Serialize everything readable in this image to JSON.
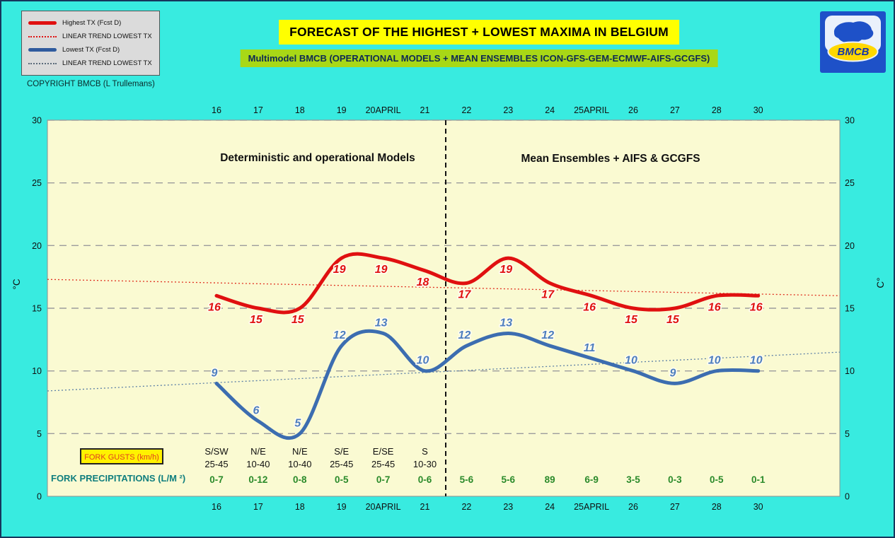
{
  "page": {
    "title": "FORECAST OF THE HIGHEST + LOWEST MAXIMA IN BELGIUM",
    "subtitle": "Multimodel BMCB (OPERATIONAL MODELS + MEAN ENSEMBLES  ICON-GFS-GEM-ECMWF-AIFS-GCGFS)",
    "copyright": "COPYRIGHT BMCB (L Trullemans)",
    "logo_text": "BMCB"
  },
  "legend": {
    "items": [
      {
        "label": "Highest TX (Fcst D)",
        "swatch": "red-solid-thick"
      },
      {
        "label": "LINEAR TREND LOWEST  TX",
        "swatch": "red-dotted"
      },
      {
        "label": "Lowest TX (Fcst D)",
        "swatch": "blue-solid-thick"
      },
      {
        "label": "LINEAR TREND LOWEST TX",
        "swatch": "gray-dotted"
      }
    ]
  },
  "chart_data": {
    "type": "line",
    "categories": [
      "16",
      "17",
      "18",
      "19",
      "20APRIL",
      "21",
      "22",
      "23",
      "24",
      "25APRIL",
      "26",
      "27",
      "28",
      "30"
    ],
    "y_axis": {
      "min": 0,
      "max": 30,
      "tick_step": 5,
      "unit_left": "°C",
      "unit_right": "C°"
    },
    "grid": true,
    "legend_position": "top-left",
    "sections": [
      {
        "label": "Deterministic and operational Models"
      },
      {
        "label": "Mean Ensembles + AIFS & GCGFS"
      }
    ],
    "separator_after_category": "21",
    "series": [
      {
        "name": "Highest TX (Fcst D)",
        "color": "#E01010",
        "label_color": "#E01010",
        "values": [
          16,
          15,
          15,
          19,
          19,
          18,
          17,
          19,
          17,
          16,
          15,
          15,
          16,
          16
        ]
      },
      {
        "name": "Lowest TX (Fcst D)",
        "color": "#3C6DB0",
        "label_color": "#4D7EBF",
        "values": [
          9,
          6,
          5,
          12,
          13,
          10,
          12,
          13,
          12,
          11,
          10,
          9,
          10,
          10
        ]
      }
    ],
    "trend_lines": [
      {
        "name": "LINEAR TREND LOWEST  TX",
        "color": "#E03020",
        "start_value": 17.3,
        "end_value": 16.0
      },
      {
        "name": "LINEAR TREND LOWEST TX",
        "color": "#5B7FA6",
        "start_value": 8.4,
        "end_value": 11.5
      }
    ],
    "annotations": {
      "fork_gusts_label": "FORK GUSTS (km/h)",
      "wind": [
        {
          "dir": "S/SW",
          "range": "25-45"
        },
        {
          "dir": "N/E",
          "range": "10-40"
        },
        {
          "dir": "N/E",
          "range": "10-40"
        },
        {
          "dir": "S/E",
          "range": "25-45"
        },
        {
          "dir": "E/SE",
          "range": "25-45"
        },
        {
          "dir": "S",
          "range": "10-30"
        }
      ],
      "fork_precip_label": "FORK PRECIPITATIONS (L/M ²)",
      "precip": [
        "0-7",
        "0-12",
        "0-8",
        "0-5",
        "0-7",
        "0-6",
        "5-6",
        "5-6",
        "89",
        "6-9",
        "3-5",
        "0-3",
        "0-5",
        "0-1"
      ]
    }
  },
  "colors": {
    "background": "#38EBE0",
    "plot_bg": "#FAFAD2",
    "title_bg": "#FFFF00",
    "subtitle_bg": "#A8D816",
    "highest_tx_red": "#E01010",
    "lowest_tx_blue": "#3C6DB0",
    "trend_red": "#E03020",
    "trend_blue": "#5B7FA6",
    "precip_green": "#2A8A2A",
    "teal": "#0F7E7E",
    "gust_text": "#E04020",
    "gust_box_bg": "#FFF200",
    "logo_blue": "#1E51C8",
    "logo_yellow": "#FFD800"
  }
}
